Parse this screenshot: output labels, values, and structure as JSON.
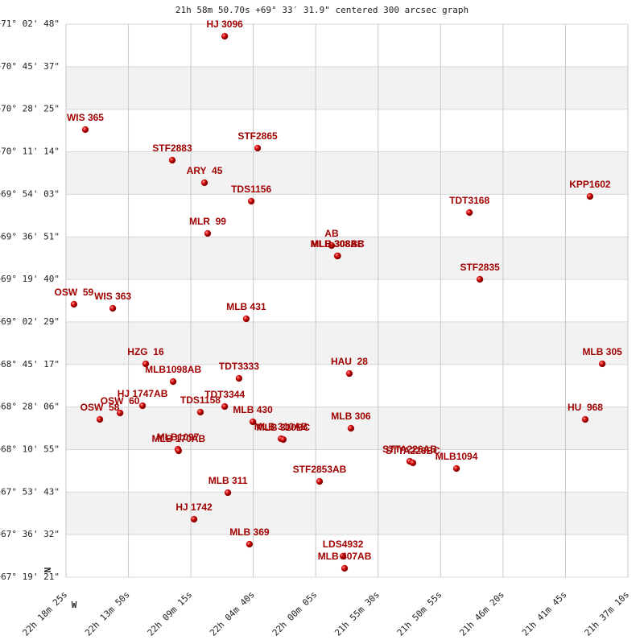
{
  "chart_data": {
    "type": "scatter",
    "title": "21h 58m 50.70s +69° 33′ 31.9\" centered 300 arcsec graph",
    "compass": {
      "north": "N",
      "west": "W"
    },
    "color": "#cc0000",
    "grid": true,
    "bands": true,
    "xlim": [
      80305,
      77830
    ],
    "ylim": [
      242361,
      255768
    ],
    "xticks": [
      {
        "value": 80305,
        "label": "22h 18m 25s"
      },
      {
        "value": 80030,
        "label": "22h 13m 50s"
      },
      {
        "value": 79755,
        "label": "22h 09m 15s"
      },
      {
        "value": 79480,
        "label": "22h 04m 40s"
      },
      {
        "value": 79205,
        "label": "22h 00m 05s"
      },
      {
        "value": 78930,
        "label": "21h 55m 30s"
      },
      {
        "value": 78655,
        "label": "21h 50m 55s"
      },
      {
        "value": 78380,
        "label": "21h 46m 20s"
      },
      {
        "value": 78105,
        "label": "21h 41m 45s"
      },
      {
        "value": 77830,
        "label": "21h 37m 10s"
      }
    ],
    "yticks": [
      {
        "value": 255768,
        "label": "+71° 02' 48\""
      },
      {
        "value": 254737,
        "label": "+70° 45' 37\""
      },
      {
        "value": 253705,
        "label": "+70° 28' 25\""
      },
      {
        "value": 252674,
        "label": "+70° 11' 14\""
      },
      {
        "value": 251643,
        "label": "+69° 54' 03\""
      },
      {
        "value": 250611,
        "label": "+69° 36' 51\""
      },
      {
        "value": 249580,
        "label": "+69° 19' 40\""
      },
      {
        "value": 248549,
        "label": "+69° 02' 29\""
      },
      {
        "value": 247517,
        "label": "+68° 45' 17\""
      },
      {
        "value": 246486,
        "label": "+68° 28' 06\""
      },
      {
        "value": 245455,
        "label": "+68° 10' 55\""
      },
      {
        "value": 244423,
        "label": "+67° 53' 43\""
      },
      {
        "value": 243392,
        "label": "+67° 36' 32\""
      },
      {
        "value": 242361,
        "label": "+67° 19' 21\""
      }
    ],
    "point_labels": [
      "HJ 3096",
      "WIS 365",
      "STF2883",
      "STF2865",
      "ARY  45",
      "TDS1156",
      "TDT3168",
      "KPP1602",
      "MLR  99",
      "AB",
      "MLB 308AB",
      "MLB 308BC",
      "STF2835",
      "OSW  59",
      "WIS 363",
      "MLB 431",
      "HZG  16",
      "MLB1098AB",
      "TDT3333",
      "HAU  28",
      "MLB 305",
      "HJ 1747AB",
      "OSW  60",
      "OSW  58",
      "TDS1158",
      "TDT3344",
      "MLB 430",
      "MLB 310AB",
      "MLB 310BC",
      "MLB 306",
      "HU  968",
      "MLB1097",
      "MLB 170AB",
      "STTA226AB",
      "STTA226BC",
      "MLB1094",
      "STF2853AB",
      "MLB 311",
      "HJ 1742",
      "MLB 369",
      "LDS4932",
      "MLB 407AB"
    ],
    "x": [
      79606,
      80220,
      79837,
      79461,
      79695,
      79489,
      78528,
      77997,
      79681,
      79135,
      79110,
      79108,
      78482,
      80270,
      80099,
      79511,
      79954,
      79833,
      79543,
      79057,
      77943,
      79968,
      80067,
      80156,
      79713,
      79606,
      79482,
      79358,
      79348,
      79050,
      78018,
      79812,
      79809,
      78791,
      78777,
      78585,
      79188,
      79592,
      79741,
      79497,
      79085,
      79078
    ],
    "y": [
      255475,
      253212,
      252470,
      252763,
      251924,
      251475,
      251201,
      251592,
      250694,
      250401,
      250148,
      250150,
      249582,
      248977,
      248879,
      248626,
      247533,
      247103,
      247181,
      247298,
      247533,
      246518,
      246342,
      246186,
      246362,
      246498,
      246128,
      245718,
      245698,
      245971,
      246186,
      245464,
      245425,
      245171,
      245132,
      244996,
      244683,
      244410,
      243766,
      243161,
      242869,
      242576
    ]
  }
}
